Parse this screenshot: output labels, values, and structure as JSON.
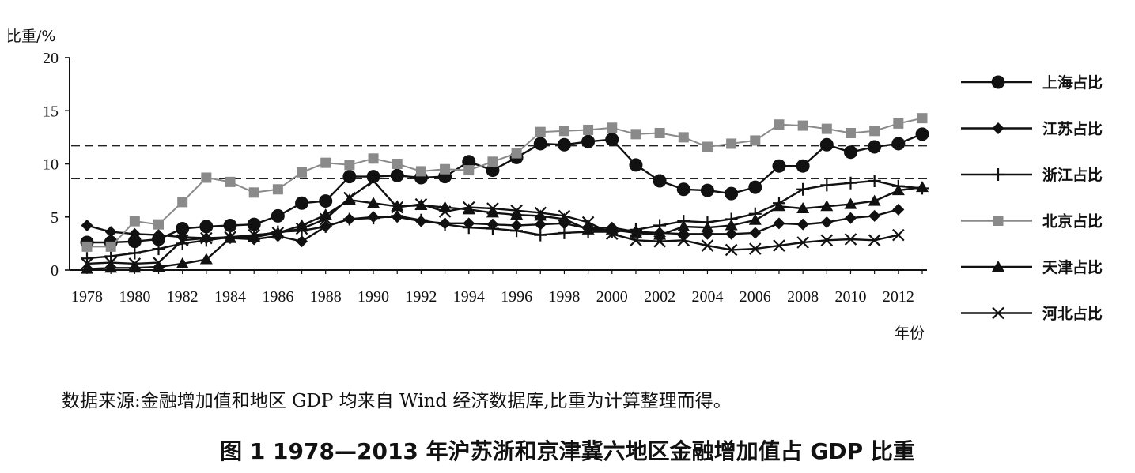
{
  "chart_data": {
    "type": "line",
    "ylabel": "比重/%",
    "xlabel": "年份",
    "ylim": [
      0,
      20
    ],
    "yticks": [
      "0",
      "5",
      "10",
      "15",
      "20"
    ],
    "xtick_labels": [
      "1978",
      "1980",
      "1982",
      "1984",
      "1986",
      "1988",
      "1990",
      "1992",
      "1994",
      "1996",
      "1998",
      "2000",
      "2002",
      "2004",
      "2006",
      "2008",
      "2010",
      "2012"
    ],
    "x": [
      1978,
      1979,
      1980,
      1981,
      1982,
      1983,
      1984,
      1985,
      1986,
      1987,
      1988,
      1989,
      1990,
      1991,
      1992,
      1993,
      1994,
      1995,
      1996,
      1997,
      1998,
      1999,
      2000,
      2001,
      2002,
      2003,
      2004,
      2005,
      2006,
      2007,
      2008,
      2009,
      2010,
      2011,
      2012,
      2013
    ],
    "reference_lines": [
      11.7,
      8.6
    ],
    "legend_position": "right",
    "grid": false,
    "series": [
      {
        "name": "上海占比",
        "marker": "circle",
        "color": "#111111",
        "values": [
          2.6,
          2.6,
          2.7,
          2.9,
          3.9,
          4.1,
          4.2,
          4.3,
          5.1,
          6.3,
          6.5,
          8.8,
          8.8,
          8.9,
          8.7,
          8.8,
          10.2,
          9.4,
          10.6,
          11.9,
          11.8,
          12.1,
          12.3,
          9.9,
          8.4,
          7.6,
          7.5,
          7.2,
          7.8,
          9.8,
          9.8,
          11.8,
          11.1,
          11.6,
          11.9,
          12.8
        ]
      },
      {
        "name": "江苏占比",
        "marker": "diamond",
        "color": "#111111",
        "values": [
          4.2,
          3.6,
          3.4,
          3.3,
          3.1,
          3.0,
          3.0,
          2.9,
          3.2,
          2.7,
          4.1,
          4.8,
          5.0,
          5.0,
          4.6,
          4.4,
          4.4,
          4.3,
          4.2,
          4.3,
          4.4,
          3.9,
          4.0,
          3.6,
          3.5,
          3.4,
          3.4,
          3.4,
          3.5,
          4.4,
          4.3,
          4.5,
          4.9,
          5.1,
          5.7,
          null
        ]
      },
      {
        "name": "浙江占比",
        "marker": "plus",
        "color": "#111111",
        "values": [
          1.1,
          1.3,
          1.6,
          2.0,
          2.5,
          2.8,
          3.1,
          3.2,
          3.6,
          3.7,
          4.1,
          4.8,
          4.9,
          5.1,
          4.7,
          4.3,
          4.0,
          3.9,
          3.7,
          3.3,
          3.5,
          3.6,
          3.6,
          3.8,
          4.2,
          4.6,
          4.5,
          4.8,
          5.3,
          6.3,
          7.6,
          8.0,
          8.2,
          8.4,
          7.9,
          7.7
        ]
      },
      {
        "name": "北京占比",
        "marker": "square",
        "color": "#8a8a8a",
        "values": [
          2.2,
          2.2,
          4.6,
          4.3,
          6.4,
          8.7,
          8.3,
          7.3,
          7.6,
          9.2,
          10.1,
          9.9,
          10.5,
          10.0,
          9.3,
          9.5,
          9.4,
          10.2,
          11.0,
          13.0,
          13.1,
          13.2,
          13.4,
          12.8,
          12.9,
          12.5,
          11.6,
          11.9,
          12.2,
          13.7,
          13.6,
          13.3,
          12.9,
          13.1,
          13.8,
          14.3
        ]
      },
      {
        "name": "天津占比",
        "marker": "triangle",
        "color": "#111111",
        "values": [
          0.1,
          0.2,
          0.2,
          0.3,
          0.6,
          1.0,
          3.0,
          3.1,
          3.5,
          4.2,
          5.2,
          6.6,
          6.3,
          6.0,
          6.1,
          5.9,
          5.7,
          5.4,
          5.2,
          5.1,
          4.8,
          3.8,
          3.8,
          3.5,
          3.3,
          4.1,
          4.0,
          4.2,
          4.7,
          6.0,
          5.8,
          6.0,
          6.2,
          6.5,
          7.5,
          7.8
        ]
      },
      {
        "name": "河北占比",
        "marker": "x",
        "color": "#111111",
        "values": [
          0.6,
          0.7,
          0.6,
          0.7,
          2.8,
          3.0,
          3.1,
          3.3,
          3.5,
          3.9,
          4.8,
          6.8,
          8.4,
          5.9,
          6.2,
          5.5,
          5.9,
          5.8,
          5.6,
          5.4,
          5.1,
          4.5,
          3.4,
          2.8,
          2.7,
          2.8,
          2.3,
          1.9,
          2.0,
          2.3,
          2.6,
          2.8,
          2.9,
          2.8,
          3.3,
          null
        ]
      }
    ]
  },
  "source_note": "数据来源:金融增加值和地区 GDP 均来自 Wind 经济数据库,比重为计算整理而得。",
  "figure_caption": "图 1   1978—2013 年沪苏浙和京津冀六地区金融增加值占 GDP 比重"
}
